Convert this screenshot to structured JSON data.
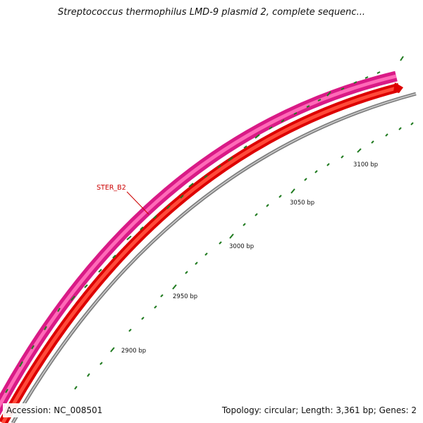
{
  "title": "Streptococcus thermophilus LMD-9 plasmid 2, complete sequenc...",
  "feature_label": "STER_B2",
  "scale_labels": [
    "2900 bp",
    "2950 bp",
    "3000 bp",
    "3050 bp",
    "3100 bp"
  ],
  "footer": {
    "accession": "Accession: NC_008501",
    "summary": "Topology: circular; Length: 3,361 bp; Genes: 2"
  },
  "colors": {
    "gene_outer": "#e8288f",
    "gene_inner": "#ee1111",
    "backbone": "#8a8a8a",
    "tick": "#1f7a1f",
    "label": "#cc0000"
  }
}
